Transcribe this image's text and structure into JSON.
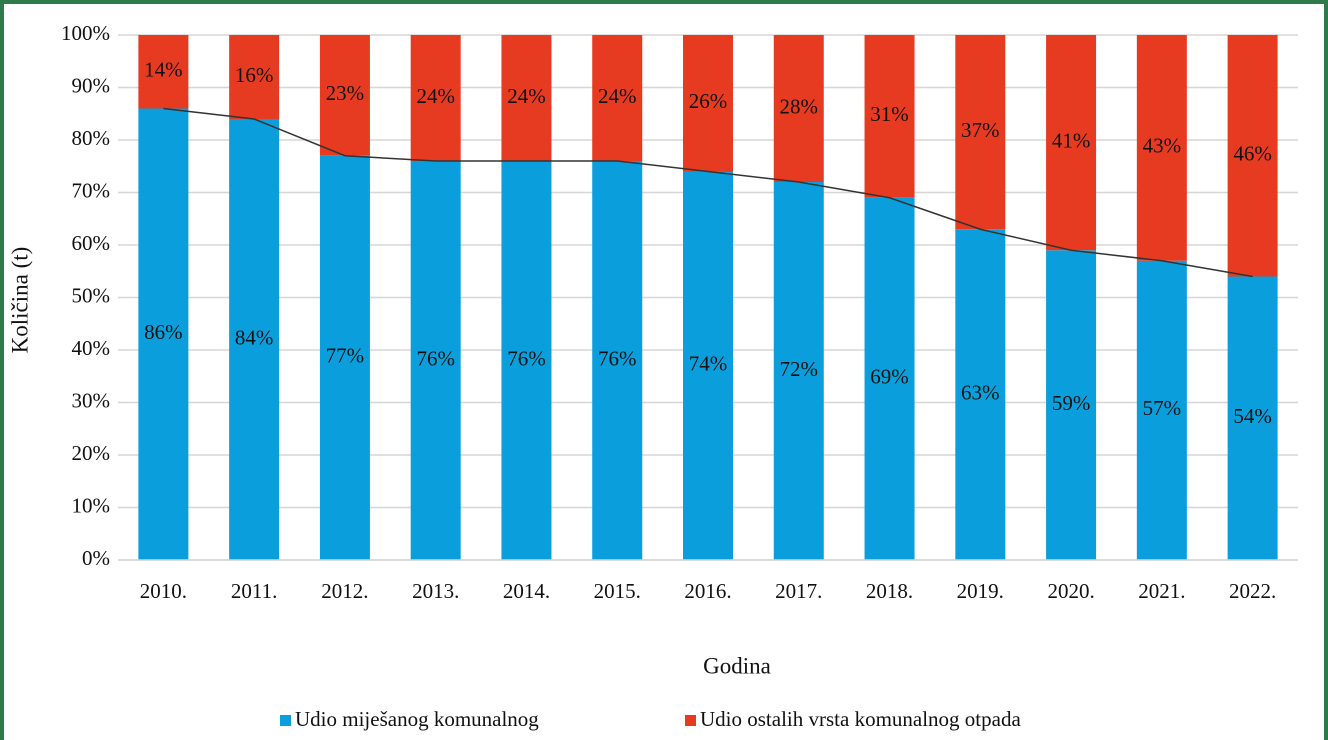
{
  "chart_data": {
    "type": "stacked_bar",
    "x_label": "Godina",
    "y_label": "Količina (t)",
    "categories": [
      "2010.",
      "2011.",
      "2012.",
      "2013.",
      "2014.",
      "2015.",
      "2016.",
      "2017.",
      "2018.",
      "2019.",
      "2020.",
      "2021.",
      "2022."
    ],
    "series": [
      {
        "name": "Udio miješanog komunalnog",
        "color": "#0a9fdc",
        "values": [
          86,
          84,
          77,
          76,
          76,
          76,
          74,
          72,
          69,
          63,
          59,
          57,
          54
        ],
        "value_labels": [
          "86%",
          "84%",
          "77%",
          "76%",
          "76%",
          "76%",
          "74%",
          "72%",
          "69%",
          "63%",
          "59%",
          "57%",
          "54%"
        ]
      },
      {
        "name": "Udio ostalih vrsta komunalnog otpada",
        "color": "#e63b21",
        "values": [
          14,
          16,
          23,
          24,
          24,
          24,
          26,
          28,
          31,
          37,
          41,
          43,
          46
        ],
        "value_labels": [
          "14%",
          "16%",
          "23%",
          "24%",
          "24%",
          "24%",
          "26%",
          "28%",
          "31%",
          "37%",
          "41%",
          "43%",
          "46%"
        ]
      }
    ],
    "ylim": [
      0,
      100
    ],
    "yticks": [
      {
        "value": 0,
        "label": "0%"
      },
      {
        "value": 10,
        "label": "10%"
      },
      {
        "value": 20,
        "label": "20%"
      },
      {
        "value": 30,
        "label": "30%"
      },
      {
        "value": 40,
        "label": "40%"
      },
      {
        "value": 50,
        "label": "50%"
      },
      {
        "value": 60,
        "label": "60%"
      },
      {
        "value": 70,
        "label": "70%"
      },
      {
        "value": 80,
        "label": "80%"
      },
      {
        "value": 90,
        "label": "90%"
      },
      {
        "value": 100,
        "label": "100%"
      }
    ],
    "grid": true,
    "legend": "bottom"
  }
}
